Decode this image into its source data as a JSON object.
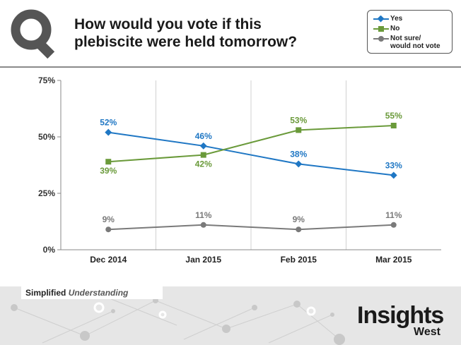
{
  "header": {
    "title_line1": "How would you vote if this",
    "title_line2": "plebiscite were held tomorrow?"
  },
  "legend": {
    "items": [
      {
        "label_line1": "Yes",
        "label_line2": "",
        "color": "#1f77c4",
        "marker": "diamond"
      },
      {
        "label_line1": "No",
        "label_line2": "",
        "color": "#6a9a3a",
        "marker": "square"
      },
      {
        "label_line1": "Not sure/",
        "label_line2": "would not vote",
        "color": "#7a7a7a",
        "marker": "circle"
      }
    ]
  },
  "footer": {
    "tagline_bold": "Simplified",
    "tagline_italic": "Understanding",
    "brand": "Insights",
    "brand_sub": "West"
  },
  "chart_data": {
    "type": "line",
    "title": "How would you vote if this plebiscite were held tomorrow?",
    "categories": [
      "Dec 2014",
      "Jan 2015",
      "Feb 2015",
      "Mar 2015"
    ],
    "ylim": [
      0,
      75
    ],
    "yticks": [
      "0%",
      "25%",
      "50%",
      "75%"
    ],
    "ytick_values": [
      0,
      25,
      50,
      75
    ],
    "grid": "vertical",
    "legend_position": "top-right",
    "series": [
      {
        "name": "Yes",
        "values": [
          52,
          46,
          38,
          33
        ],
        "labels": [
          "52%",
          "46%",
          "38%",
          "33%"
        ],
        "color": "#1f77c4",
        "marker": "diamond",
        "label_side": "above"
      },
      {
        "name": "No",
        "values": [
          39,
          42,
          53,
          55
        ],
        "labels": [
          "39%",
          "42%",
          "53%",
          "55%"
        ],
        "color": "#6a9a3a",
        "marker": "square",
        "label_side": "mixed"
      },
      {
        "name": "Not sure/would not vote",
        "values": [
          9,
          11,
          9,
          11
        ],
        "labels": [
          "9%",
          "11%",
          "9%",
          "11%"
        ],
        "color": "#7a7a7a",
        "marker": "circle",
        "label_side": "above"
      }
    ]
  }
}
